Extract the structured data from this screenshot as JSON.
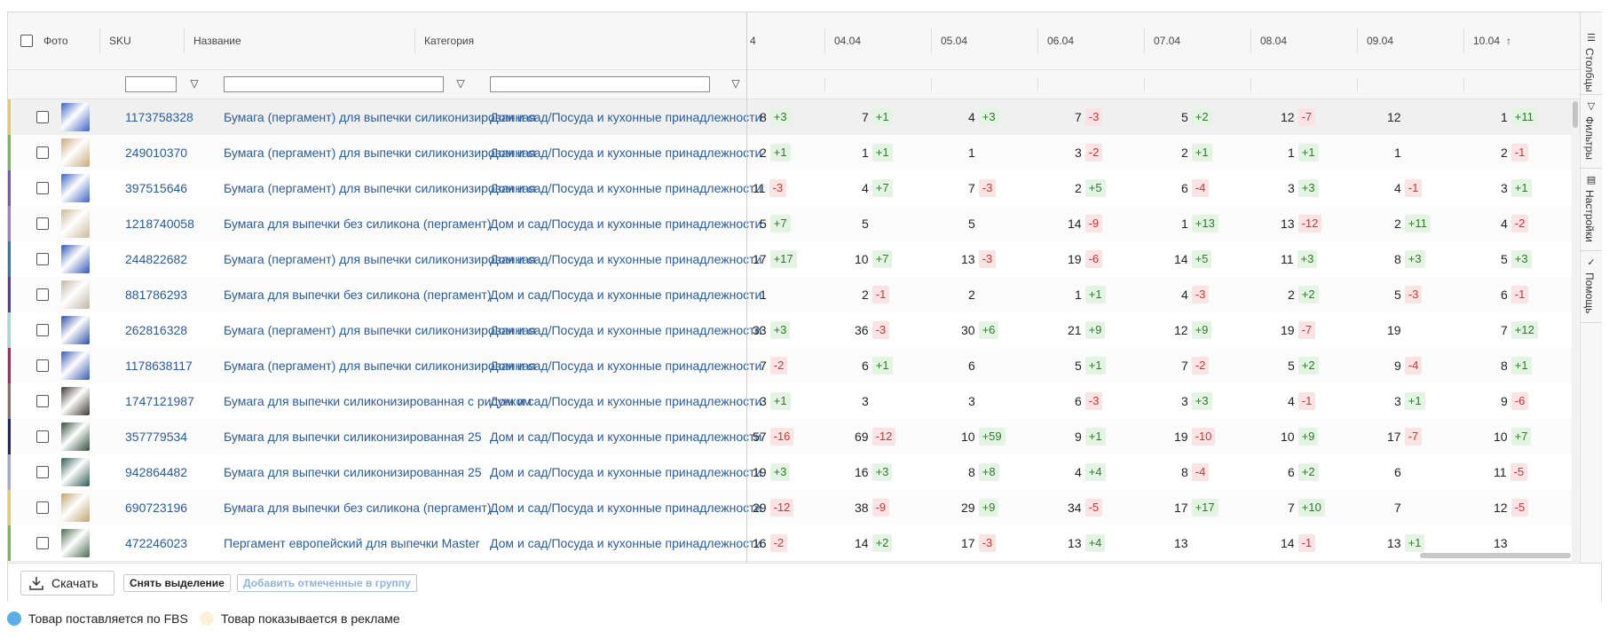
{
  "header": {
    "photo": "Фото",
    "sku": "SKU",
    "name": "Название",
    "category": "Категория",
    "dates": [
      "4",
      "04.04",
      "05.04",
      "06.04",
      "07.04",
      "08.04",
      "09.04",
      "10.04"
    ],
    "sorted_column_icon": "arrow-up-icon"
  },
  "side_panel": {
    "tabs": [
      {
        "label": "Столбцы",
        "icon": "columns-icon"
      },
      {
        "label": "Фильтры",
        "icon": "filter-icon"
      },
      {
        "label": "Настройки",
        "icon": "settings-icon"
      },
      {
        "label": "Помощь",
        "icon": "check-icon"
      }
    ]
  },
  "rows": [
    {
      "bar": "#f2c94c",
      "thumb": "#3b63c4",
      "sku": "1173758328",
      "name": "Бумага (пергамент) для выпечки силиконизированная",
      "category": "Дом и сад/Посуда и кухонные принадлежности",
      "cells": [
        {
          "v": "8",
          "d": "+3"
        },
        {
          "v": "7",
          "d": "+1"
        },
        {
          "v": "4",
          "d": "+3"
        },
        {
          "v": "7",
          "d": "-3"
        },
        {
          "v": "5",
          "d": "+2"
        },
        {
          "v": "12",
          "d": "-7"
        },
        {
          "v": "12",
          "d": ""
        },
        {
          "v": "1",
          "d": "+11"
        }
      ]
    },
    {
      "bar": "#6fbf4a",
      "thumb": "#c9a97a",
      "sku": "249010370",
      "name": "Бумага (пергамент) для выпечки силиконизированная",
      "category": "Дом и сад/Посуда и кухонные принадлежности",
      "cells": [
        {
          "v": "2",
          "d": "+1"
        },
        {
          "v": "1",
          "d": "+1"
        },
        {
          "v": "1",
          "d": ""
        },
        {
          "v": "3",
          "d": "-2"
        },
        {
          "v": "2",
          "d": "+1"
        },
        {
          "v": "1",
          "d": "+1"
        },
        {
          "v": "1",
          "d": ""
        },
        {
          "v": "2",
          "d": "-1"
        }
      ]
    },
    {
      "bar": "#7b4fc9",
      "thumb": "#3b63c4",
      "sku": "397515646",
      "name": "Бумага (пергамент) для выпечки силиконизированная",
      "category": "Дом и сад/Посуда и кухонные принадлежности",
      "cells": [
        {
          "v": "11",
          "d": "-3"
        },
        {
          "v": "4",
          "d": "+7"
        },
        {
          "v": "7",
          "d": "-3"
        },
        {
          "v": "2",
          "d": "+5"
        },
        {
          "v": "6",
          "d": "-4"
        },
        {
          "v": "3",
          "d": "+3"
        },
        {
          "v": "4",
          "d": "-1"
        },
        {
          "v": "3",
          "d": "+1"
        }
      ]
    },
    {
      "bar": "#a37ad6",
      "thumb": "#cbb99a",
      "sku": "1218740058",
      "name": "Бумага для выпечки без силикона (пергамент)",
      "category": "Дом и сад/Посуда и кухонные принадлежности",
      "cells": [
        {
          "v": "5",
          "d": "+7"
        },
        {
          "v": "5",
          "d": ""
        },
        {
          "v": "5",
          "d": ""
        },
        {
          "v": "14",
          "d": "-9"
        },
        {
          "v": "1",
          "d": "+13"
        },
        {
          "v": "13",
          "d": "-12"
        },
        {
          "v": "2",
          "d": "+11"
        },
        {
          "v": "4",
          "d": "-2"
        }
      ]
    },
    {
      "bar": "#2a73c9",
      "thumb": "#2f57b8",
      "sku": "244822682",
      "name": "Бумага (пергамент) для выпечки силиконизированная",
      "category": "Дом и сад/Посуда и кухонные принадлежности",
      "cells": [
        {
          "v": "17",
          "d": "+17"
        },
        {
          "v": "10",
          "d": "+7"
        },
        {
          "v": "13",
          "d": "-3"
        },
        {
          "v": "19",
          "d": "-6"
        },
        {
          "v": "14",
          "d": "+5"
        },
        {
          "v": "11",
          "d": "+3"
        },
        {
          "v": "8",
          "d": "+3"
        },
        {
          "v": "5",
          "d": "+3"
        }
      ]
    },
    {
      "bar": "#5a3aa8",
      "thumb": "#bfb6a4",
      "sku": "881786293",
      "name": "Бумага для выпечки без силикона (пергамент)",
      "category": "Дом и сад/Посуда и кухонные принадлежности",
      "cells": [
        {
          "v": "1",
          "d": ""
        },
        {
          "v": "2",
          "d": "-1"
        },
        {
          "v": "2",
          "d": ""
        },
        {
          "v": "1",
          "d": "+1"
        },
        {
          "v": "4",
          "d": "-3"
        },
        {
          "v": "2",
          "d": "+2"
        },
        {
          "v": "5",
          "d": "-3"
        },
        {
          "v": "6",
          "d": "-1"
        }
      ]
    },
    {
      "bar": "#8fe3dc",
      "thumb": "#2d4fa8",
      "sku": "262816328",
      "name": "Бумага (пергамент) для выпечки силиконизированная",
      "category": "Дом и сад/Посуда и кухонные принадлежности",
      "cells": [
        {
          "v": "33",
          "d": "+3"
        },
        {
          "v": "36",
          "d": "-3"
        },
        {
          "v": "30",
          "d": "+6"
        },
        {
          "v": "21",
          "d": "+9"
        },
        {
          "v": "12",
          "d": "+9"
        },
        {
          "v": "19",
          "d": "-7"
        },
        {
          "v": "19",
          "d": ""
        },
        {
          "v": "7",
          "d": "+12"
        }
      ]
    },
    {
      "bar": "#c2185b",
      "thumb": "#3559b5",
      "sku": "1178638117",
      "name": "Бумага (пергамент) для выпечки силиконизированная",
      "category": "Дом и сад/Посуда и кухонные принадлежности",
      "cells": [
        {
          "v": "7",
          "d": "-2"
        },
        {
          "v": "6",
          "d": "+1"
        },
        {
          "v": "6",
          "d": ""
        },
        {
          "v": "5",
          "d": "+1"
        },
        {
          "v": "7",
          "d": "-2"
        },
        {
          "v": "5",
          "d": "+2"
        },
        {
          "v": "9",
          "d": "-4"
        },
        {
          "v": "8",
          "d": "+1"
        }
      ]
    },
    {
      "bar": "#8d6e63",
      "thumb": "#3d3a33",
      "sku": "1747121987",
      "name": "Бумага для выпечки силиконизированная с рисунком",
      "category": "Дом и сад/Посуда и кухонные принадлежности",
      "cells": [
        {
          "v": "3",
          "d": "+1"
        },
        {
          "v": "3",
          "d": ""
        },
        {
          "v": "3",
          "d": ""
        },
        {
          "v": "6",
          "d": "-3"
        },
        {
          "v": "3",
          "d": "+3"
        },
        {
          "v": "4",
          "d": "-1"
        },
        {
          "v": "3",
          "d": "+1"
        },
        {
          "v": "9",
          "d": "-6"
        }
      ]
    },
    {
      "bar": "#1a237e",
      "thumb": "#2e4a3a",
      "sku": "357779534",
      "name": "Бумага для выпечки силиконизированная 25",
      "category": "Дом и сад/Посуда и кухонные принадлежности",
      "cells": [
        {
          "v": "57",
          "d": "-16"
        },
        {
          "v": "69",
          "d": "-12"
        },
        {
          "v": "10",
          "d": "+59"
        },
        {
          "v": "9",
          "d": "+1"
        },
        {
          "v": "19",
          "d": "-10"
        },
        {
          "v": "10",
          "d": "+9"
        },
        {
          "v": "17",
          "d": "-7"
        },
        {
          "v": "10",
          "d": "+7"
        }
      ]
    },
    {
      "bar": "#9fa8da",
      "thumb": "#2f5a52",
      "sku": "942864482",
      "name": "Бумага для выпечки силиконизированная 25",
      "category": "Дом и сад/Посуда и кухонные принадлежности",
      "cells": [
        {
          "v": "19",
          "d": "+3"
        },
        {
          "v": "16",
          "d": "+3"
        },
        {
          "v": "8",
          "d": "+8"
        },
        {
          "v": "4",
          "d": "+4"
        },
        {
          "v": "8",
          "d": "-4"
        },
        {
          "v": "6",
          "d": "+2"
        },
        {
          "v": "6",
          "d": ""
        },
        {
          "v": "11",
          "d": "-5"
        }
      ]
    },
    {
      "bar": "#f2c94c",
      "thumb": "#bfa36e",
      "sku": "690723196",
      "name": "Бумага для выпечки без силикона (пергамент)",
      "category": "Дом и сад/Посуда и кухонные принадлежности",
      "cells": [
        {
          "v": "29",
          "d": "-12"
        },
        {
          "v": "38",
          "d": "-9"
        },
        {
          "v": "29",
          "d": "+9"
        },
        {
          "v": "34",
          "d": "-5"
        },
        {
          "v": "17",
          "d": "+17"
        },
        {
          "v": "7",
          "d": "+10"
        },
        {
          "v": "7",
          "d": ""
        },
        {
          "v": "12",
          "d": "-5"
        }
      ]
    },
    {
      "bar": "#6fbf4a",
      "thumb": "#4b6b4e",
      "sku": "472246023",
      "name": "Пергамент европейский для выпечки Master",
      "category": "Дом и сад/Посуда и кухонные принадлежности",
      "cells": [
        {
          "v": "16",
          "d": "-2"
        },
        {
          "v": "14",
          "d": "+2"
        },
        {
          "v": "17",
          "d": "-3"
        },
        {
          "v": "13",
          "d": "+4"
        },
        {
          "v": "13",
          "d": ""
        },
        {
          "v": "14",
          "d": "-1"
        },
        {
          "v": "13",
          "d": "+1"
        },
        {
          "v": "13",
          "d": ""
        }
      ]
    }
  ],
  "footer": {
    "download": "Скачать",
    "download_icon": "download-icon",
    "deselect": "Снять выделение",
    "add_to_group": "Добавить отмеченные в группу"
  },
  "legend": [
    {
      "color": "#5aaee8",
      "label": "Товар поставляется по FBS"
    },
    {
      "color": "#fdf0d6",
      "label": "Товар показывается в рекламе"
    }
  ]
}
